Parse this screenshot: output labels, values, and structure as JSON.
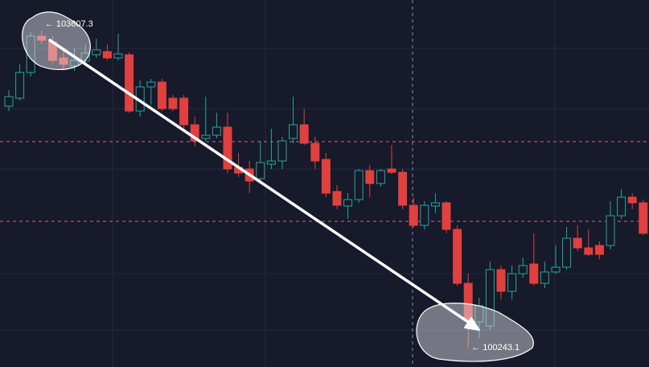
{
  "chart_data": {
    "type": "candlestick",
    "up_color": "#26a69a",
    "down_color": "#e0403f",
    "ylim": [
      100038,
      103932
    ],
    "open": [
      102805,
      102890,
      103163,
      103548,
      103488,
      103317,
      103232,
      103283,
      103351,
      103385,
      103317,
      103351,
      102754,
      103010,
      103061,
      102890,
      102890,
      102608,
      102463,
      102497,
      102583,
      102156,
      102139,
      102036,
      102190,
      102224,
      102463,
      102608,
      102412,
      102241,
      101900,
      101746,
      101814,
      102122,
      101985,
      102139,
      102104,
      101754,
      101541,
      101746,
      101780,
      101498,
      100926,
      100516,
      100473,
      101071,
      100841,
      101028,
      101131,
      100926,
      101046,
      101097,
      101404,
      101302,
      101327,
      101327,
      101643,
      101840,
      101780
    ],
    "high": [
      102976,
      103249,
      103590,
      103607.3,
      103548,
      103420,
      103420,
      103462,
      103522,
      103462,
      103573,
      103377,
      103078,
      103095,
      103095,
      102924,
      102924,
      102694,
      102907,
      102736,
      102736,
      102309,
      102224,
      102437,
      102566,
      102480,
      102907,
      102779,
      102480,
      102309,
      101968,
      101882,
      102139,
      102181,
      102139,
      102395,
      102139,
      101840,
      101797,
      101882,
      101797,
      101541,
      101028,
      100772,
      101156,
      101114,
      101114,
      101199,
      101456,
      101156,
      101327,
      101524,
      101541,
      101498,
      101370,
      101797,
      101925,
      101882,
      101814
    ],
    "low": [
      102754,
      102865,
      103121,
      103462,
      103266,
      103206,
      103181,
      103232,
      103317,
      103292,
      103292,
      102736,
      102694,
      102822,
      102754,
      102754,
      102566,
      102378,
      102437,
      102463,
      102096,
      102053,
      101882,
      102011,
      102139,
      102139,
      102412,
      102395,
      102139,
      101840,
      101712,
      101609,
      101780,
      101840,
      101951,
      102087,
      101712,
      101524,
      101498,
      101669,
      101456,
      100900,
      100243.1,
      100345,
      100431,
      100755,
      100755,
      100986,
      100900,
      100875,
      101028,
      101071,
      101268,
      101216,
      101182,
      101285,
      101609,
      101712,
      101438
    ],
    "close": [
      102907,
      103163,
      103548,
      103505,
      103292,
      103249,
      103292,
      103368,
      103403,
      103317,
      103360,
      102754,
      103010,
      103061,
      102779,
      102779,
      102608,
      102437,
      102497,
      102583,
      102139,
      102096,
      102011,
      102207,
      102224,
      102437,
      102608,
      102412,
      102224,
      101882,
      101754,
      101814,
      102122,
      101985,
      102122,
      102104,
      101754,
      101541,
      101754,
      101780,
      101498,
      100926,
      100533,
      100687,
      101071,
      100841,
      101028,
      101114,
      100926,
      101046,
      101097,
      101404,
      101302,
      101233,
      101233,
      101643,
      101840,
      101780,
      101456
    ],
    "annotations": [
      {
        "label": "← 103607.3",
        "value": 103607.3,
        "index": 3
      },
      {
        "label": "← 100243.1",
        "value": 100243.1,
        "index": 42
      }
    ]
  }
}
